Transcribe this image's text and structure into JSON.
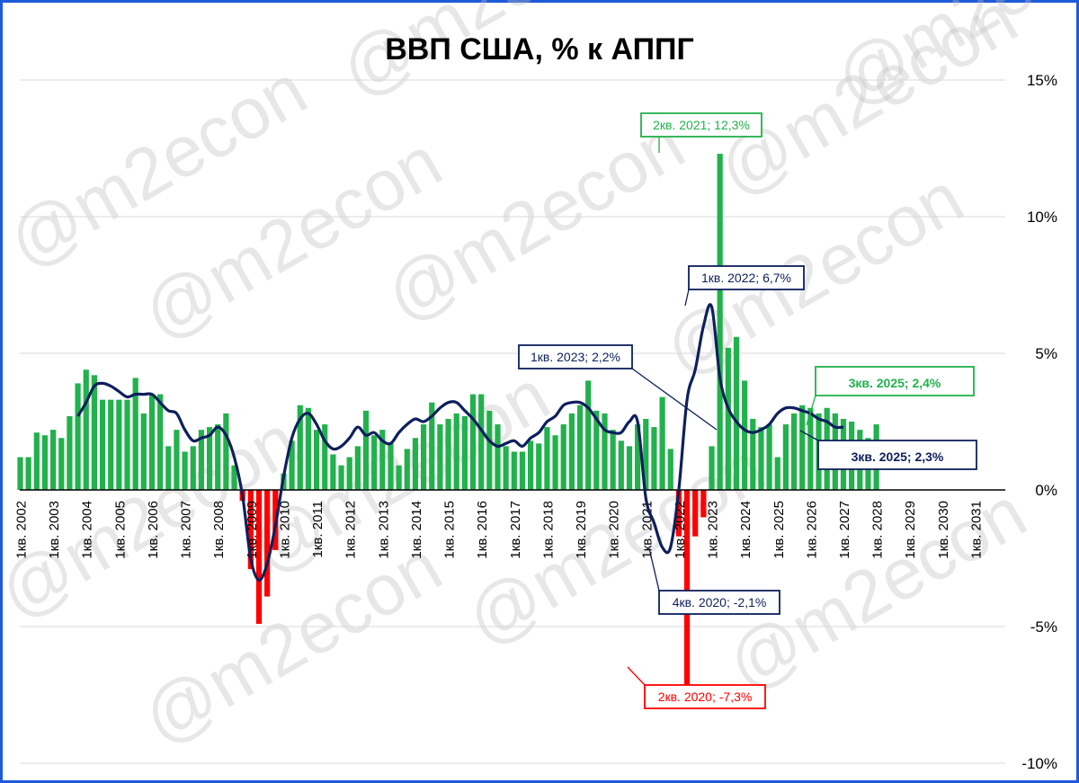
{
  "chart_data": {
    "type": "bar",
    "title": "ВВП США, % к АППГ",
    "watermark": "@m2econ",
    "ylim": [
      -10,
      15
    ],
    "yticks": [
      {
        "value": 15,
        "label": "15%"
      },
      {
        "value": 10,
        "label": "10%"
      },
      {
        "value": 5,
        "label": "5%"
      },
      {
        "value": 0,
        "label": "0%"
      },
      {
        "value": -5,
        "label": "-5%"
      },
      {
        "value": -10,
        "label": "-10%"
      }
    ],
    "grid": true,
    "x_start": "1кв. 2002",
    "x_tick_labels": [
      "1кв. 2002",
      "1кв. 2003",
      "1кв. 2004",
      "1кв. 2005",
      "1кв. 2006",
      "1кв. 2007",
      "1кв. 2008",
      "1кв. 2009",
      "1кв. 2010",
      "1кв. 2011",
      "1кв. 2012",
      "1кв. 2013",
      "1кв. 2014",
      "1кв. 2015",
      "1кв. 2016",
      "1кв. 2017",
      "1кв. 2018",
      "1кв. 2019",
      "1кв. 2020",
      "1кв. 2021",
      "1кв. 2022",
      "1кв. 2023",
      "1кв. 2024",
      "1кв. 2025",
      "1кв. 2026",
      "1кв. 2027",
      "1кв. 2028",
      "1кв. 2029",
      "1кв. 2030",
      "1кв. 2031"
    ],
    "colors": {
      "positive": "#22b14c",
      "negative": "#ff0000",
      "line": "#0d1f5c",
      "axis": "#000000",
      "grid": "#d9d9d9",
      "frame": "#1f5bd8",
      "ann_green": "#22b14c",
      "ann_navy": "#0d1f5c",
      "ann_red": "#ff0000"
    },
    "series": [
      {
        "kind": "bar",
        "values": [
          1.2,
          1.2,
          2.1,
          2.0,
          2.2,
          1.9,
          2.7,
          3.9,
          4.4,
          4.2,
          3.3,
          3.3,
          3.3,
          3.3,
          4.1,
          2.8,
          3.5,
          3.5,
          1.6,
          2.2,
          1.4,
          1.6,
          2.2,
          2.3,
          2.4,
          2.8,
          0.9,
          -0.4,
          -2.9,
          -4.9,
          -3.9,
          -2.2,
          0.6,
          1.8,
          3.1,
          3.0,
          2.2,
          2.4,
          1.3,
          0.9,
          1.2,
          1.6,
          2.9,
          2.0,
          2.2,
          1.7,
          0.9,
          1.5,
          1.9,
          2.4,
          3.2,
          2.4,
          2.6,
          2.8,
          2.7,
          3.5,
          3.5,
          2.9,
          2.4,
          1.6,
          1.4,
          1.4,
          1.8,
          1.7,
          2.3,
          2.0,
          2.4,
          2.8,
          3.1,
          4.0,
          2.9,
          2.8,
          2.2,
          1.8,
          1.6,
          2.4,
          2.6,
          2.3,
          3.4,
          1.5,
          -1.7,
          -7.3,
          -1.7,
          -1.0,
          1.6,
          12.3,
          5.2,
          5.6,
          4.0,
          2.6,
          2.3,
          2.4,
          1.2,
          2.4,
          2.8,
          3.1,
          3.0,
          2.8,
          3.0,
          2.8,
          2.6,
          2.5,
          2.2,
          1.9,
          2.4
        ]
      },
      {
        "kind": "line",
        "start_index": 7,
        "values": [
          2.7,
          3.2,
          3.8,
          3.9,
          3.8,
          3.6,
          3.4,
          3.5,
          3.5,
          3.5,
          3.2,
          2.9,
          2.8,
          2.2,
          1.8,
          1.9,
          2.0,
          2.3,
          2.0,
          1.2,
          -0.2,
          -2.5,
          -3.3,
          -2.7,
          -1.3,
          0.5,
          1.9,
          2.6,
          2.8,
          2.4,
          1.8,
          1.5,
          1.6,
          1.9,
          2.3,
          2.0,
          2.1,
          1.8,
          1.7,
          2.1,
          2.4,
          2.6,
          2.5,
          2.7,
          3.0,
          3.2,
          3.2,
          2.9,
          2.6,
          2.2,
          1.8,
          1.6,
          1.7,
          1.8,
          1.6,
          1.9,
          2.1,
          2.5,
          2.7,
          3.1,
          3.2,
          3.2,
          3.0,
          2.6,
          2.2,
          2.1,
          2.1,
          2.5,
          2.5,
          -0.3,
          -1.2,
          -2.1,
          -2.1,
          0.0,
          3.3,
          4.4,
          6.0,
          6.7,
          4.1,
          3.0,
          2.5,
          2.2,
          2.1,
          2.2,
          2.4,
          2.8,
          3.0,
          3.0,
          2.9,
          2.8,
          2.6,
          2.5,
          2.3,
          2.3
        ]
      }
    ],
    "annotations": [
      {
        "text": "2кв. 2021; 12,3%",
        "color": "green"
      },
      {
        "text": "1кв. 2022; 6,7%",
        "color": "navy"
      },
      {
        "text": "1кв. 2023; 2,2%",
        "color": "navy"
      },
      {
        "text": "3кв. 2025; 2,4%",
        "color": "green"
      },
      {
        "text": "3кв. 2025; 2,3%",
        "color": "navy"
      },
      {
        "text": "4кв. 2020; -2,1%",
        "color": "navy"
      },
      {
        "text": "2кв. 2020; -7,3%",
        "color": "red"
      }
    ]
  }
}
